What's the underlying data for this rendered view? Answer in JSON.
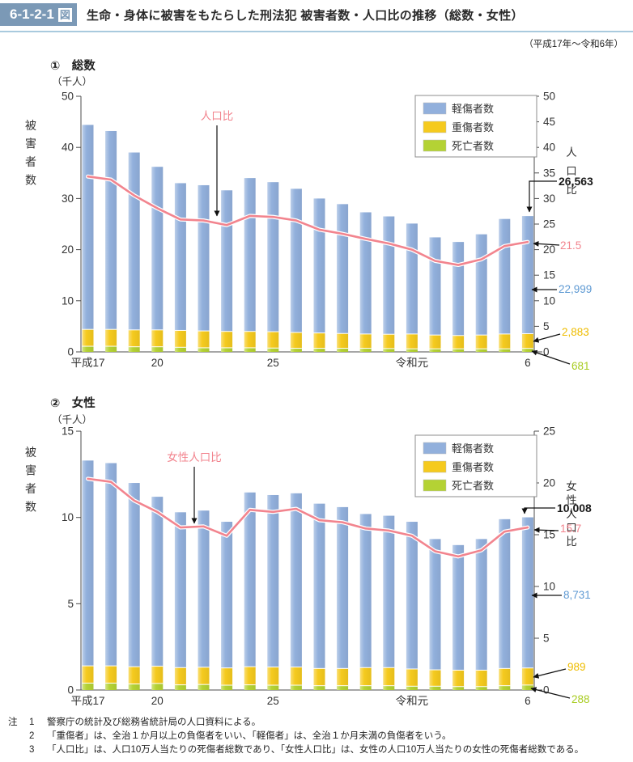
{
  "header": {
    "figure_no": "6-1-2-1",
    "figure_suffix": "図",
    "title": "生命・身体に被害をもたらした刑法犯 被害者数・人口比の推移（総数・女性）",
    "period": "（平成17年～令和6年）"
  },
  "colors": {
    "badge": "#7b99b6",
    "header_rule": "#a9cade",
    "bar_light": "#92b0dc",
    "bar_serious": "#f5ca1e",
    "bar_deaths": "#b4d234",
    "line": "#f2848e",
    "anno_total": "#1a1a1a",
    "anno_rate": "#f2848e",
    "anno_light": "#5f9ad3",
    "anno_serious": "#eebc00",
    "anno_deaths": "#a8cc21",
    "axis": "#4d4d4d"
  },
  "chart_data": [
    {
      "type": "bar",
      "subtype": "stacked-bar-with-line",
      "title": "①　総数",
      "unit_label": "（千人）",
      "ylabel_left": "被害者数",
      "ylabel_right": "人口比",
      "line_label": "人口比",
      "left_ticks": [
        0,
        10,
        20,
        30,
        40,
        50
      ],
      "right_ticks": [
        0,
        5,
        10,
        15,
        20,
        25,
        30,
        35,
        40,
        45,
        50
      ],
      "left_max": 50,
      "right_max": 50,
      "x_ticks": [
        {
          "index": 0,
          "label": "平成17"
        },
        {
          "index": 3,
          "label": "20"
        },
        {
          "index": 8,
          "label": "25"
        },
        {
          "index": 14,
          "label": "令和元"
        },
        {
          "index": 19,
          "label": "6"
        }
      ],
      "legend": [
        "軽傷者数",
        "重傷者数",
        "死亡者数"
      ],
      "series": [
        {
          "name": "死亡者数",
          "values": [
            1.1,
            1.1,
            1.0,
            1.0,
            0.9,
            0.8,
            0.8,
            0.8,
            0.75,
            0.7,
            0.7,
            0.7,
            0.7,
            0.65,
            0.6,
            0.6,
            0.6,
            0.6,
            0.6,
            0.681
          ]
        },
        {
          "name": "重傷者数",
          "values": [
            3.3,
            3.3,
            3.3,
            3.3,
            3.3,
            3.3,
            3.2,
            3.2,
            3.2,
            3.1,
            3.0,
            2.9,
            2.8,
            2.8,
            2.9,
            2.7,
            2.6,
            2.7,
            2.9,
            2.883
          ]
        },
        {
          "name": "軽傷者数",
          "values": [
            40.0,
            38.8,
            34.7,
            31.9,
            28.8,
            28.5,
            27.6,
            30.0,
            29.25,
            28.1,
            26.3,
            25.3,
            23.8,
            23.05,
            21.6,
            19.1,
            18.3,
            19.7,
            22.5,
            22.999
          ]
        }
      ],
      "line": [
        34.3,
        33.7,
        30.6,
        28.1,
        25.9,
        25.7,
        24.8,
        26.6,
        26.4,
        25.7,
        23.9,
        23.1,
        22.1,
        21.2,
        20.0,
        17.8,
        17.0,
        18.1,
        20.7,
        21.5
      ],
      "annotations": {
        "total": "26,563",
        "rate": "21.5",
        "light": "22,999",
        "serious": "2,883",
        "deaths": "681"
      }
    },
    {
      "type": "bar",
      "subtype": "stacked-bar-with-line",
      "title": "②　女性",
      "unit_label": "（千人）",
      "ylabel_left": "被害者数",
      "ylabel_right": "女性人口比",
      "line_label": "女性人口比",
      "left_ticks": [
        0,
        5,
        10,
        15
      ],
      "right_ticks": [
        0,
        5,
        10,
        15,
        20,
        25
      ],
      "left_max": 15,
      "right_max": 25,
      "x_ticks": [
        {
          "index": 0,
          "label": "平成17"
        },
        {
          "index": 3,
          "label": "20"
        },
        {
          "index": 8,
          "label": "25"
        },
        {
          "index": 14,
          "label": "令和元"
        },
        {
          "index": 19,
          "label": "6"
        }
      ],
      "legend": [
        "軽傷者数",
        "重傷者数",
        "死亡者数"
      ],
      "series": [
        {
          "name": "死亡者数",
          "values": [
            0.4,
            0.4,
            0.35,
            0.38,
            0.3,
            0.32,
            0.28,
            0.3,
            0.28,
            0.28,
            0.25,
            0.25,
            0.25,
            0.25,
            0.22,
            0.22,
            0.2,
            0.2,
            0.25,
            0.288
          ]
        },
        {
          "name": "重傷者数",
          "values": [
            1.0,
            1.0,
            1.0,
            1.0,
            1.0,
            1.0,
            1.0,
            1.05,
            1.05,
            1.05,
            1.0,
            1.0,
            1.05,
            1.05,
            1.0,
            0.95,
            0.95,
            0.95,
            1.0,
            0.989
          ]
        },
        {
          "name": "軽傷者数",
          "values": [
            11.9,
            11.75,
            10.65,
            9.82,
            9.0,
            9.08,
            8.47,
            10.1,
            9.97,
            10.07,
            9.55,
            9.35,
            8.9,
            8.8,
            8.53,
            7.58,
            7.25,
            7.6,
            8.65,
            8.731
          ]
        }
      ],
      "line": [
        20.4,
        20.1,
        18.3,
        17.2,
        15.7,
        15.8,
        14.9,
        17.4,
        17.2,
        17.5,
        16.4,
        16.2,
        15.6,
        15.4,
        14.9,
        13.4,
        12.9,
        13.5,
        15.3,
        15.7
      ],
      "annotations": {
        "total": "10,008",
        "rate": "15.7",
        "light": "8,731",
        "serious": "989",
        "deaths": "288"
      }
    }
  ],
  "notes": {
    "prefix": "注",
    "items": [
      {
        "no": "1",
        "text": "警察庁の統計及び総務省統計局の人口資料による。"
      },
      {
        "no": "2",
        "text": "「重傷者」は、全治１か月以上の負傷者をいい、「軽傷者」は、全治１か月未満の負傷者をいう。"
      },
      {
        "no": "3",
        "text": "「人口比」は、人口10万人当たりの死傷者総数であり、「女性人口比」は、女性の人口10万人当たりの女性の死傷者総数である。"
      }
    ]
  }
}
